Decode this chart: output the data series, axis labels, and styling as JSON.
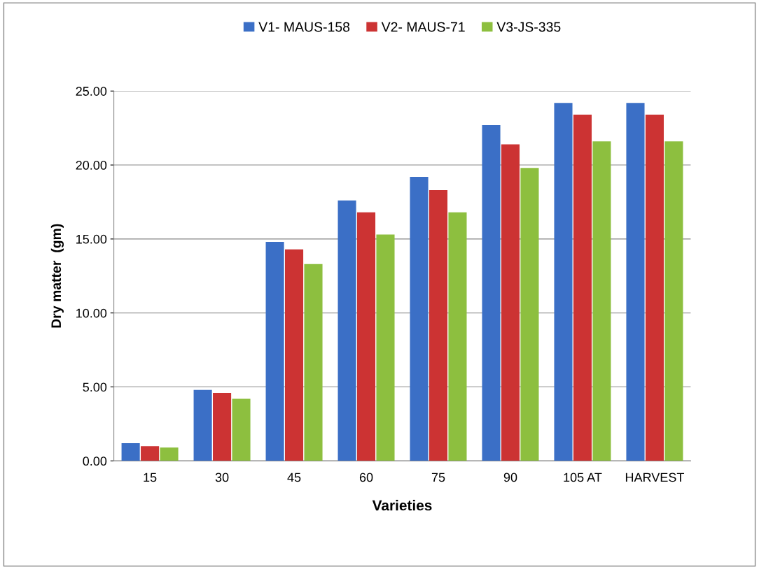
{
  "chart_data": {
    "type": "bar",
    "xlabel": "Varieties",
    "ylabel": "Dry matter  (gm)",
    "categories": [
      "15",
      "30",
      "45",
      "60",
      "75",
      "90",
      "105 AT",
      "HARVEST"
    ],
    "series": [
      {
        "name": "V1- MAUS-158",
        "color": "#3b6fc6",
        "values": [
          1.2,
          4.8,
          14.8,
          17.6,
          19.2,
          22.7,
          24.2,
          24.2
        ]
      },
      {
        "name": "V2- MAUS-71",
        "color": "#cc3333",
        "values": [
          1.0,
          4.6,
          14.3,
          16.8,
          18.3,
          21.4,
          23.4,
          23.4
        ]
      },
      {
        "name": "V3-JS-335",
        "color": "#8dbf3f",
        "values": [
          0.9,
          4.2,
          13.3,
          15.3,
          16.8,
          19.8,
          21.6,
          21.6
        ]
      }
    ],
    "ylim": [
      0,
      25
    ],
    "yticks": [
      {
        "value": 0,
        "label": "0.00"
      },
      {
        "value": 5,
        "label": "5.00"
      },
      {
        "value": 10,
        "label": "10.00"
      },
      {
        "value": 15,
        "label": "15.00"
      },
      {
        "value": 20,
        "label": "20.00"
      },
      {
        "value": 25,
        "label": "25.00"
      }
    ],
    "grid": "y",
    "legend": "top"
  }
}
